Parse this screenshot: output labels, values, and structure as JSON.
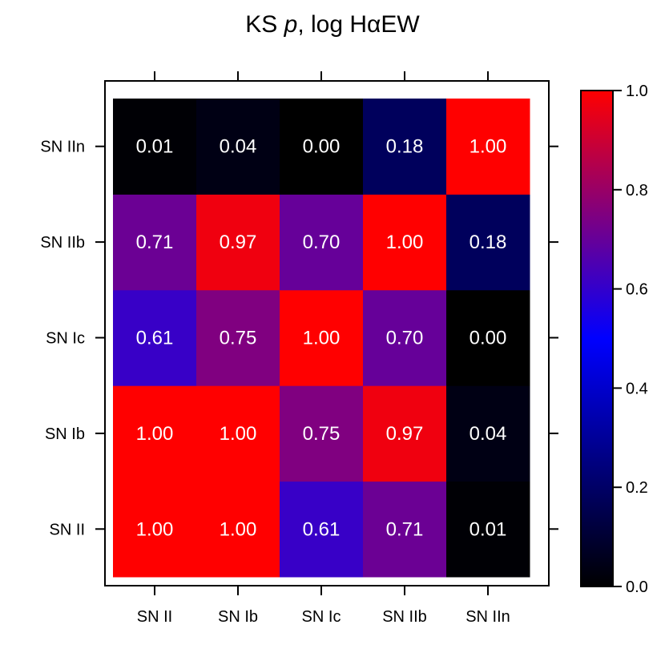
{
  "title": {
    "prefix": "KS ",
    "italic": "p",
    "suffix": ", log HαEW"
  },
  "colors": {
    "low": "#000000",
    "mid": "#0000ff",
    "high": "#ff0000",
    "label": "#ffffff",
    "frame": "#000000"
  },
  "chart_data": {
    "type": "heatmap",
    "title": "KS p, log HαEW",
    "x_categories": [
      "SN II",
      "SN Ib",
      "SN Ic",
      "SN IIb",
      "SN IIn"
    ],
    "y_categories": [
      "SN II",
      "SN Ib",
      "SN Ic",
      "SN IIb",
      "SN IIn"
    ],
    "values": [
      [
        1.0,
        1.0,
        0.61,
        0.71,
        0.01
      ],
      [
        1.0,
        1.0,
        0.75,
        0.97,
        0.04
      ],
      [
        0.61,
        0.75,
        1.0,
        0.7,
        0.0
      ],
      [
        0.71,
        0.97,
        0.7,
        1.0,
        0.18
      ],
      [
        0.01,
        0.04,
        0.0,
        0.18,
        1.0
      ]
    ],
    "colorbar": {
      "range": [
        0.0,
        1.0
      ],
      "ticks": [
        "0.0",
        "0.2",
        "0.4",
        "0.6",
        "0.8",
        "1.0"
      ]
    }
  }
}
